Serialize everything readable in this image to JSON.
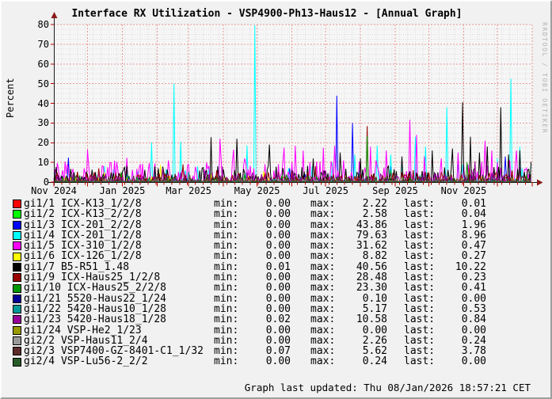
{
  "chart_data": {
    "type": "line",
    "title": "Interface RX Utilization - VSP4900-Ph13-Haus12 - [Annual Graph]",
    "ylabel": "Percent",
    "watermark": "RRDTOOL / TOBI OETIKER",
    "ylim": [
      0,
      80
    ],
    "yticks": [
      0,
      10,
      20,
      30,
      40,
      50,
      60,
      70,
      80
    ],
    "grid": true,
    "legend_position": "bottom",
    "x_range_days": 426,
    "xticks": [
      {
        "day": 0,
        "label": "Nov 2024"
      },
      {
        "day": 61,
        "label": "Jan 2025"
      },
      {
        "day": 120,
        "label": "Mar 2025"
      },
      {
        "day": 181,
        "label": "May 2025"
      },
      {
        "day": 242,
        "label": "Jul 2025"
      },
      {
        "day": 304,
        "label": "Sep 2025"
      },
      {
        "day": 365,
        "label": "Nov 2025"
      }
    ],
    "month_grid_days": [
      30,
      61,
      92,
      120,
      151,
      181,
      212,
      242,
      273,
      304,
      334,
      365,
      395,
      426
    ],
    "series": [
      {
        "name": "gi1/1 ICX-K13_1/2/8",
        "color": "#ff0000",
        "min": "0.00",
        "max": "2.22",
        "last": "0.01",
        "noise": {
          "amp": 1.2,
          "density": 0.5,
          "pow": 3
        },
        "spikes": [
          [
            140,
            2.22
          ],
          [
            300,
            1.5
          ]
        ]
      },
      {
        "name": "gi1/2 ICX-K13_2/2/8",
        "color": "#00ff00",
        "min": "0.00",
        "max": "2.58",
        "last": "0.04",
        "noise": {
          "amp": 1.2,
          "density": 0.4,
          "pow": 3
        },
        "spikes": [
          [
            20,
            2.58
          ],
          [
            210,
            1.8
          ]
        ]
      },
      {
        "name": "gi1/3 ICX-201_2/2/8",
        "color": "#0000ff",
        "min": "0.00",
        "max": "43.86",
        "last": "1.96",
        "noise": {
          "amp": 4,
          "density": 0.2,
          "pow": 3
        },
        "spikes": [
          [
            13,
            12.4
          ],
          [
            100,
            6
          ],
          [
            210,
            7
          ],
          [
            252,
            43.86
          ],
          [
            266,
            30
          ],
          [
            300,
            8
          ],
          [
            360,
            13
          ],
          [
            402,
            13
          ],
          [
            425,
            1.96
          ]
        ]
      },
      {
        "name": "gi1/4 ICX-201_1/2/8",
        "color": "#00ffff",
        "min": "0.00",
        "max": "79.63",
        "last": "8.96",
        "noise": {
          "amp": 8,
          "density": 0.3,
          "pow": 3
        },
        "spikes": [
          [
            87,
            20.2
          ],
          [
            107,
            50
          ],
          [
            113,
            20.5
          ],
          [
            128,
            8
          ],
          [
            172,
            18.6
          ],
          [
            179,
            79.63
          ],
          [
            200,
            6
          ],
          [
            248,
            10
          ],
          [
            268,
            14
          ],
          [
            288,
            18.5
          ],
          [
            300,
            14
          ],
          [
            310,
            12
          ],
          [
            322,
            23
          ],
          [
            331,
            18
          ],
          [
            350,
            38
          ],
          [
            364,
            9
          ],
          [
            395,
            12
          ],
          [
            407,
            52.5
          ],
          [
            415,
            18
          ],
          [
            425,
            8.96
          ]
        ]
      },
      {
        "name": "gi1/5 ICX-310_1/2/8",
        "color": "#ff00ff",
        "min": "0.00",
        "max": "31.62",
        "last": "0.47",
        "noise": {
          "amp": 11,
          "density": 0.55,
          "pow": 2
        },
        "spikes": [
          [
            1,
            6.5
          ],
          [
            30,
            16.5
          ],
          [
            50,
            10
          ],
          [
            65,
            12.3
          ],
          [
            90,
            9.5
          ],
          [
            120,
            9
          ],
          [
            148,
            22
          ],
          [
            160,
            16.5
          ],
          [
            170,
            12
          ],
          [
            205,
            17.5
          ],
          [
            215,
            18.5
          ],
          [
            222,
            16
          ],
          [
            240,
            17.5
          ],
          [
            250,
            18.5
          ],
          [
            258,
            11
          ],
          [
            282,
            18
          ],
          [
            296,
            16
          ],
          [
            317,
            31.62
          ],
          [
            323,
            24
          ],
          [
            330,
            13
          ],
          [
            345,
            12
          ],
          [
            360,
            15
          ],
          [
            384,
            21
          ],
          [
            390,
            16
          ],
          [
            412,
            16
          ],
          [
            425,
            0.47
          ]
        ]
      },
      {
        "name": "gi1/6 ICX-126_1/2/8",
        "color": "#ffff00",
        "min": "0.00",
        "max": "8.82",
        "last": "0.27",
        "noise": {
          "amp": 3,
          "density": 0.35,
          "pow": 3
        },
        "spikes": [
          [
            45,
            5
          ],
          [
            95,
            8.82
          ],
          [
            140,
            4
          ],
          [
            187,
            5.5
          ],
          [
            260,
            4
          ],
          [
            352,
            3
          ],
          [
            425,
            0.27
          ]
        ]
      },
      {
        "name": "gi1/7 B5-R51_1.48",
        "color": "#000000",
        "min": "0.01",
        "max": "40.56",
        "last": "10.22",
        "noise": {
          "amp": 8,
          "density": 0.55,
          "pow": 2.2
        },
        "spikes": [
          [
            140,
            22.8
          ],
          [
            163,
            22
          ],
          [
            192,
            19
          ],
          [
            231,
            12
          ],
          [
            255,
            15
          ],
          [
            273,
            12
          ],
          [
            310,
            13
          ],
          [
            337,
            16
          ],
          [
            355,
            17
          ],
          [
            364,
            40.56
          ],
          [
            371,
            23
          ],
          [
            379,
            15
          ],
          [
            386,
            18
          ],
          [
            398,
            38
          ],
          [
            405,
            14
          ],
          [
            415,
            16
          ],
          [
            425,
            10.22
          ]
        ]
      },
      {
        "name": "gi1/9 ICX-Haus25_1/2/8",
        "color": "#990000",
        "min": "0.00",
        "max": "28.48",
        "last": "0.23",
        "noise": {
          "amp": 5,
          "density": 0.5,
          "pow": 2.5
        },
        "spikes": [
          [
            40,
            7
          ],
          [
            115,
            9
          ],
          [
            145,
            6
          ],
          [
            200,
            5
          ],
          [
            233,
            8
          ],
          [
            279,
            28.48
          ],
          [
            320,
            6
          ],
          [
            370,
            7
          ],
          [
            408,
            6
          ],
          [
            425,
            0.23
          ]
        ]
      },
      {
        "name": "gi1/10 ICX-Haus25_2/2/8",
        "color": "#009900",
        "min": "0.00",
        "max": "23.30",
        "last": "0.41",
        "noise": {
          "amp": 3.5,
          "density": 0.3,
          "pow": 3
        },
        "spikes": [
          [
            60,
            5
          ],
          [
            170,
            4
          ],
          [
            279,
            23.3
          ],
          [
            300,
            6
          ],
          [
            368,
            10
          ],
          [
            425,
            0.41
          ]
        ]
      },
      {
        "name": "gi1/21 5520-Haus22_1/24",
        "color": "#000099",
        "min": "0.00",
        "max": "0.10",
        "last": "0.00",
        "noise": {
          "amp": 0.08,
          "density": 0.3,
          "pow": 3
        },
        "spikes": [
          [
            50,
            0.1
          ]
        ]
      },
      {
        "name": "gi1/22 5420-Haus10_1/28",
        "color": "#009999",
        "min": "0.00",
        "max": "5.17",
        "last": "0.53",
        "noise": {
          "amp": 1.5,
          "density": 0.3,
          "pow": 3
        },
        "spikes": [
          [
            120,
            5.17
          ],
          [
            220,
            3
          ],
          [
            390,
            3
          ],
          [
            425,
            0.53
          ]
        ]
      },
      {
        "name": "gi1/23 5420-Haus18_1/28",
        "color": "#990099",
        "min": "0.02",
        "max": "10.58",
        "last": "0.84",
        "noise": {
          "amp": 5,
          "density": 0.45,
          "pow": 2.5
        },
        "spikes": [
          [
            97,
            7
          ],
          [
            150,
            8
          ],
          [
            240,
            6
          ],
          [
            330,
            5
          ],
          [
            375,
            10.58
          ],
          [
            415,
            6
          ],
          [
            425,
            0.84
          ]
        ]
      },
      {
        "name": "gi1/24 VSP-He2_1/23",
        "color": "#999900",
        "min": "0.00",
        "max": "0.00",
        "last": "0.00",
        "noise": {
          "amp": 0,
          "density": 0,
          "pow": 3
        },
        "spikes": []
      },
      {
        "name": "gi2/2 VSP-Haus11_2/4",
        "color": "#999999",
        "min": "0.00",
        "max": "2.26",
        "last": "0.24",
        "noise": {
          "amp": 1.2,
          "density": 0.5,
          "pow": 3
        },
        "spikes": [
          [
            200,
            2.26
          ],
          [
            425,
            0.24
          ]
        ]
      },
      {
        "name": "gi2/3 VSP7400-GZ-8401-C1_1/32",
        "color": "#5b2b2b",
        "min": "0.07",
        "max": "5.62",
        "last": "3.78",
        "noise": {
          "amp": 3,
          "density": 0.6,
          "pow": 2.5
        },
        "spikes": [
          [
            100,
            4
          ],
          [
            300,
            4.5
          ],
          [
            415,
            5.62
          ],
          [
            425,
            3.78
          ]
        ]
      },
      {
        "name": "gi2/4 VSP-Lu56-2_2/2",
        "color": "#275b27",
        "min": "0.00",
        "max": "0.24",
        "last": "0.00",
        "noise": {
          "amp": 0.2,
          "density": 0.3,
          "pow": 3
        },
        "spikes": [
          [
            100,
            0.24
          ]
        ]
      }
    ]
  },
  "legend": {
    "columns": {
      "min": "min:",
      "max": "max:",
      "last": "last:"
    }
  },
  "footer": {
    "last_updated": "Graph last updated: Thu 08/Jan/2026 18:57:21 CET"
  },
  "style": {
    "axis_color": "#1a1a1a",
    "arrow_color": "#8b1a1a",
    "tick_color": "#c00000",
    "major_grid_color": "#e89898",
    "minor_grid_color": "#dadada",
    "canvas_color": "#f6f6f6",
    "background_color": "#f1f1f1"
  }
}
